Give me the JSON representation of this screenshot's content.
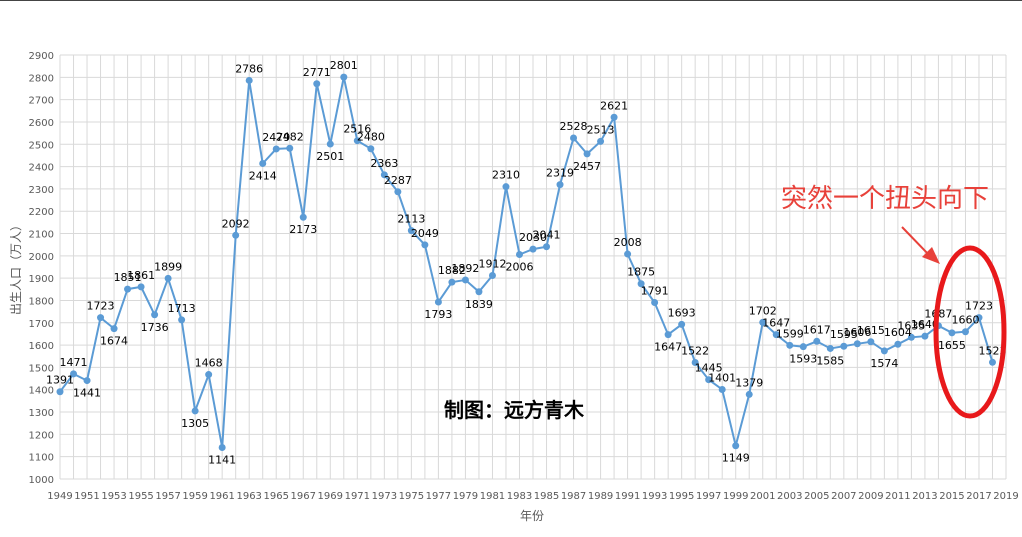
{
  "chart_data": {
    "type": "line",
    "ylabel": "出生人口（万人）",
    "xlabel": "年份",
    "ylim": [
      1000,
      2900
    ],
    "yticks": [
      1000,
      1100,
      1200,
      1300,
      1400,
      1500,
      1600,
      1700,
      1800,
      1900,
      2000,
      2100,
      2200,
      2300,
      2400,
      2500,
      2600,
      2700,
      2800,
      2900
    ],
    "xlim": [
      1949,
      2019
    ],
    "xticks": [
      1949,
      1951,
      1953,
      1955,
      1957,
      1959,
      1961,
      1963,
      1965,
      1967,
      1969,
      1971,
      1973,
      1975,
      1977,
      1979,
      1981,
      1983,
      1985,
      1987,
      1989,
      1991,
      1993,
      1995,
      1997,
      1999,
      2001,
      2003,
      2005,
      2007,
      2009,
      2011,
      2013,
      2015,
      2017,
      2019
    ],
    "grid": true,
    "series_color": "#5b9bd5",
    "x": [
      1949,
      1950,
      1951,
      1952,
      1953,
      1954,
      1955,
      1956,
      1957,
      1958,
      1959,
      1960,
      1961,
      1962,
      1963,
      1964,
      1965,
      1966,
      1967,
      1968,
      1969,
      1970,
      1971,
      1972,
      1973,
      1974,
      1975,
      1976,
      1977,
      1978,
      1979,
      1980,
      1981,
      1982,
      1983,
      1984,
      1985,
      1986,
      1987,
      1988,
      1989,
      1990,
      1991,
      1992,
      1993,
      1994,
      1995,
      1996,
      1997,
      1998,
      1999,
      2000,
      2001,
      2002,
      2003,
      2004,
      2005,
      2006,
      2007,
      2008,
      2009,
      2010,
      2011,
      2012,
      2013,
      2014,
      2015,
      2016,
      2017,
      2018
    ],
    "values": [
      1391,
      1471,
      1441,
      1723,
      1674,
      1851,
      1861,
      1736,
      1899,
      1713,
      1305,
      1468,
      1141,
      2092,
      2786,
      2414,
      2479,
      2482,
      2173,
      2771,
      2501,
      2801,
      2516,
      2480,
      2363,
      2287,
      2113,
      2049,
      1793,
      1882,
      1892,
      1839,
      1912,
      2310,
      2006,
      2030,
      2041,
      2319,
      2528,
      2457,
      2513,
      2621,
      2008,
      1875,
      1791,
      1647,
      1693,
      1522,
      1445,
      1401,
      1149,
      1379,
      1702,
      1647,
      1599,
      1593,
      1617,
      1585,
      1595,
      1606,
      1615,
      1574,
      1604,
      1635,
      1640,
      1687,
      1655,
      1660,
      1723,
      1523
    ],
    "watermark": "制图：远方青木",
    "annotation": "突然一个扭头向下"
  }
}
